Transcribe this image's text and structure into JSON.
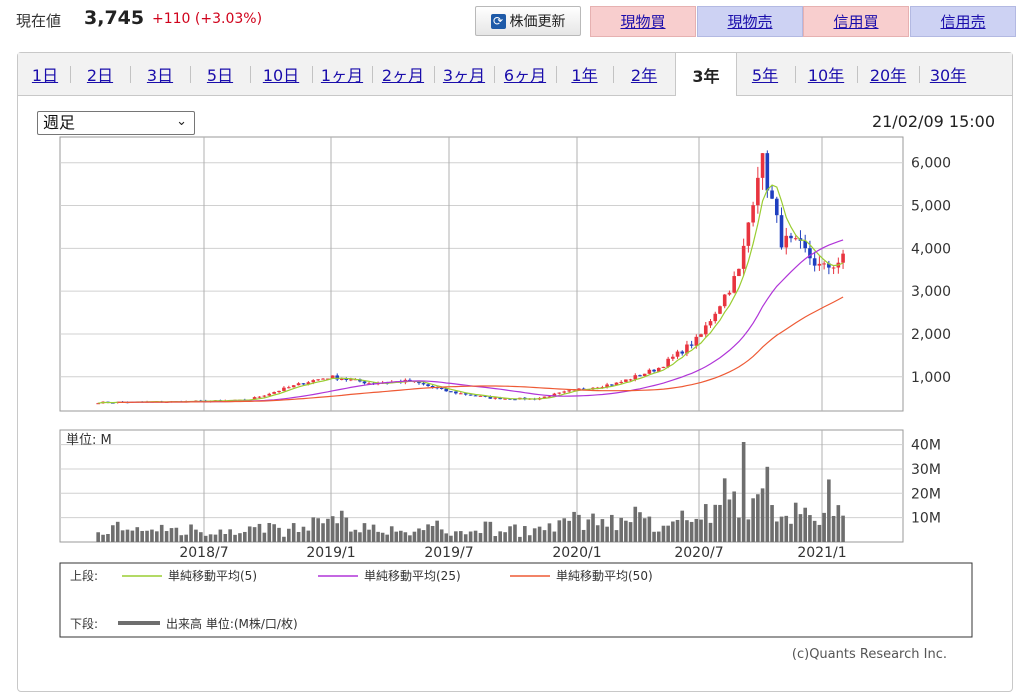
{
  "header": {
    "price_label": "現在値",
    "price_value": "3,745",
    "price_change": "+110 (+3.03%)",
    "refresh_label": "株価更新",
    "refresh_icon": "refresh-icon",
    "buttons": [
      "現物買",
      "現物売",
      "信用買",
      "信用売"
    ],
    "colors": {
      "buy": "#f8cece",
      "sell": "#cdd2f3",
      "change": "#d0021b"
    }
  },
  "tabs": [
    "1日",
    "2日",
    "3日",
    "5日",
    "10日",
    "1ヶ月",
    "2ヶ月",
    "3ヶ月",
    "6ヶ月",
    "1年",
    "2年",
    "3年",
    "5年",
    "10年",
    "20年",
    "30年"
  ],
  "active_tab": "3年",
  "period_select": "週足",
  "datetime": "21/02/09 15:00",
  "volume_unit_label": "単位: M",
  "credit": "(c)Quants Research Inc.",
  "legend": {
    "upper_label": "上段:",
    "lower_label": "下段:",
    "upper_items": [
      "単純移動平均(5)",
      "単純移動平均(25)",
      "単純移動平均(50)"
    ],
    "lower_item": "出来高 単位:(M株/口/枚)"
  },
  "chart_data": {
    "type": "candlestick",
    "x_ticks": [
      "2018/7",
      "2019/1",
      "2019/7",
      "2020/1",
      "2020/7",
      "2021/1"
    ],
    "y_ticks": [
      "1,000",
      "2,000",
      "3,000",
      "4,000",
      "5,000",
      "6,000"
    ],
    "y_tick_values": [
      1000,
      2000,
      3000,
      4000,
      5000,
      6000
    ],
    "ylim": [
      200,
      6600
    ],
    "volume_ticks": [
      "10M",
      "20M",
      "30M",
      "40M"
    ],
    "volume_tick_values": [
      10,
      20,
      30,
      40
    ],
    "volume_ylim": [
      0,
      46
    ],
    "x_range": [
      "2018-02",
      "2021-02"
    ],
    "close_estimate": [
      [
        "2018-02",
        400
      ],
      [
        "2018-06",
        420
      ],
      [
        "2018-09",
        450
      ],
      [
        "2018-12",
        900
      ],
      [
        "2019-01",
        1000
      ],
      [
        "2019-03",
        850
      ],
      [
        "2019-05",
        900
      ],
      [
        "2019-07",
        650
      ],
      [
        "2019-09",
        500
      ],
      [
        "2019-11",
        480
      ],
      [
        "2020-01",
        700
      ],
      [
        "2020-03",
        850
      ],
      [
        "2020-05",
        1200
      ],
      [
        "2020-07",
        1900
      ],
      [
        "2020-09",
        3500
      ],
      [
        "2020-10",
        6200
      ],
      [
        "2020-11",
        4200
      ],
      [
        "2020-12",
        4000
      ],
      [
        "2021-01",
        3500
      ],
      [
        "2021-02",
        3745
      ]
    ],
    "series": [
      {
        "name": "単純移動平均(5)",
        "color": "#9acd32"
      },
      {
        "name": "単純移動平均(25)",
        "color": "#b035d8"
      },
      {
        "name": "単純移動平均(50)",
        "color": "#ee5a35"
      },
      {
        "name": "出来高",
        "color": "#6e6e6e"
      }
    ],
    "grid": true
  }
}
